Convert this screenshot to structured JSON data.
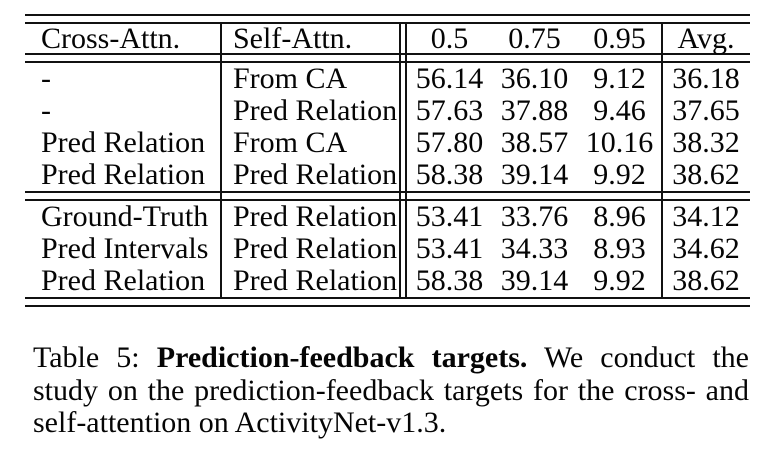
{
  "table": {
    "header": {
      "cross": "Cross-Attn.",
      "self": "Self-Attn.",
      "t1": "0.5",
      "t2": "0.75",
      "t3": "0.95",
      "avg": "Avg."
    },
    "block1": [
      {
        "cross": "-",
        "self": "From CA",
        "v1": "56.14",
        "v2": "36.10",
        "v3": "9.12",
        "avg": "36.18"
      },
      {
        "cross": "-",
        "self": "Pred Relation",
        "v1": "57.63",
        "v2": "37.88",
        "v3": "9.46",
        "avg": "37.65"
      },
      {
        "cross": "Pred Relation",
        "self": "From CA",
        "v1": "57.80",
        "v2": "38.57",
        "v3": "10.16",
        "avg": "38.32"
      },
      {
        "cross": "Pred Relation",
        "self": "Pred Relation",
        "v1": "58.38",
        "v2": "39.14",
        "v3": "9.92",
        "avg": "38.62"
      }
    ],
    "block2": [
      {
        "cross": "Ground-Truth",
        "self": "Pred Relation",
        "v1": "53.41",
        "v2": "33.76",
        "v3": "8.96",
        "avg": "34.12"
      },
      {
        "cross": "Pred Intervals",
        "self": "Pred Relation",
        "v1": "53.41",
        "v2": "34.33",
        "v3": "8.93",
        "avg": "34.62"
      },
      {
        "cross": "Pred Relation",
        "self": "Pred Relation",
        "v1": "58.38",
        "v2": "39.14",
        "v3": "9.92",
        "avg": "38.62"
      }
    ]
  },
  "caption": {
    "label": "Table 5:",
    "bold": "Prediction-feedback targets.",
    "text": "We conduct the study on the prediction-feedback targets for the cross- and self-attention on ActivityNet-v1.3."
  }
}
